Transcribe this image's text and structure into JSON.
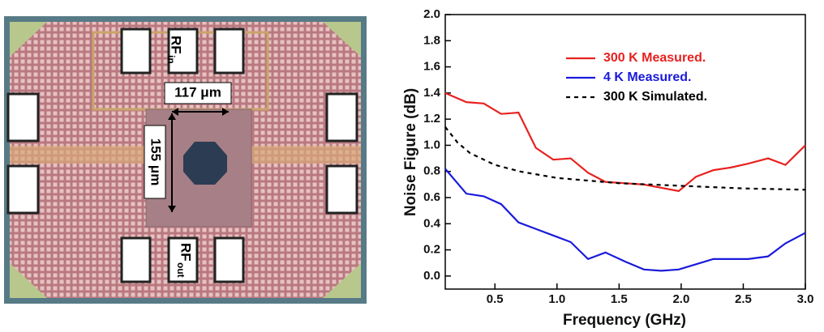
{
  "micrograph": {
    "rf_in": {
      "main": "RF",
      "sub": "in"
    },
    "width": "117 μm",
    "height": "155 μm",
    "rf_out": {
      "main": "RF",
      "sub": "out"
    }
  },
  "chart_data": {
    "type": "line",
    "x_label": "Frequency (GHz)",
    "y_label": "Noise Figure (dB)",
    "xlim": [
      0.1,
      3.0
    ],
    "ylim": [
      -0.1,
      2.0
    ],
    "xticks": [
      0.5,
      {
        "value": 1,
        "label": "1.0"
      },
      1.5,
      {
        "value": 2,
        "label": "2.0"
      },
      2.5,
      {
        "value": 3,
        "label": "3.0"
      }
    ],
    "yticks": [
      {
        "value": 0,
        "label": "0.0"
      },
      0.2,
      0.4,
      0.6,
      0.8,
      {
        "value": 1,
        "label": "1.0"
      },
      1.2,
      1.4,
      1.6,
      1.8,
      {
        "value": 2,
        "label": "2.0"
      }
    ],
    "legend": "upper right",
    "grid": false,
    "series": [
      {
        "name": "300 K Measured.",
        "color": "#e8211f",
        "dashed": false,
        "x": [
          0.1,
          0.27,
          0.41,
          0.55,
          0.69,
          0.83,
          0.97,
          1.11,
          1.25,
          1.39,
          1.7,
          1.98,
          2.12,
          2.26,
          2.4,
          2.54,
          2.7,
          2.84,
          3.0
        ],
        "values": [
          1.4,
          1.33,
          1.32,
          1.24,
          1.25,
          0.98,
          0.89,
          0.9,
          0.79,
          0.72,
          0.7,
          0.65,
          0.76,
          0.81,
          0.83,
          0.86,
          0.9,
          0.85,
          1.0
        ]
      },
      {
        "name": "4 K Measured.",
        "color": "#1a1adb",
        "dashed": false,
        "x": [
          0.1,
          0.27,
          0.41,
          0.55,
          0.69,
          0.83,
          0.97,
          1.11,
          1.25,
          1.39,
          1.55,
          1.7,
          1.84,
          1.98,
          2.12,
          2.26,
          2.54,
          2.7,
          2.84,
          3.0
        ],
        "values": [
          0.82,
          0.63,
          0.61,
          0.55,
          0.41,
          0.36,
          0.31,
          0.26,
          0.13,
          0.18,
          0.11,
          0.05,
          0.04,
          0.05,
          0.09,
          0.13,
          0.13,
          0.15,
          0.25,
          0.33
        ]
      },
      {
        "name": "300 K Simulated.",
        "color": "#000000",
        "dashed": true,
        "x": [
          0.1,
          0.2,
          0.3,
          0.5,
          0.7,
          1.0,
          1.5,
          2.0,
          2.5,
          3.0
        ],
        "values": [
          1.14,
          1.02,
          0.94,
          0.85,
          0.8,
          0.75,
          0.71,
          0.69,
          0.67,
          0.66
        ]
      }
    ]
  }
}
